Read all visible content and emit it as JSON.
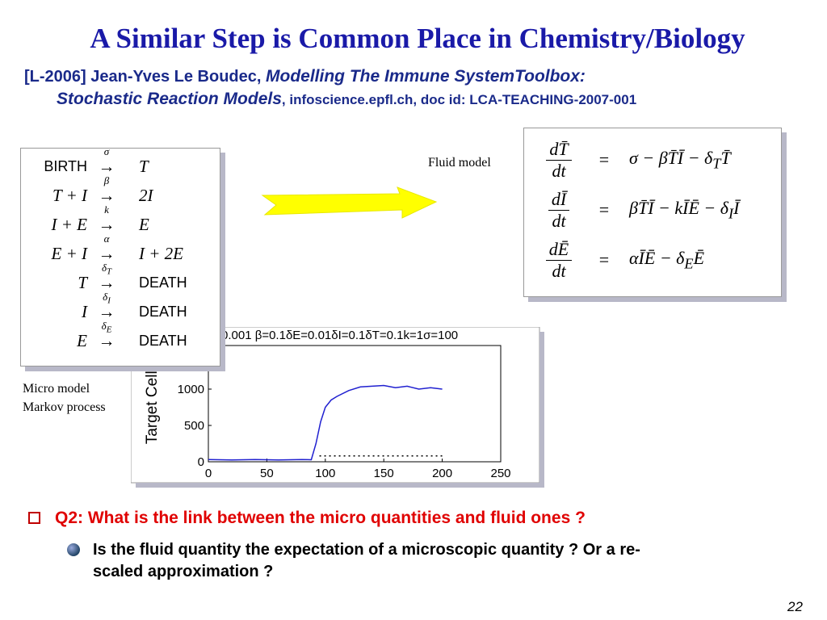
{
  "header": {
    "title": "A Similar Step is Common Place in Chemistry/Biology",
    "ref_lead": "[L-2006]  Jean-Yves Le Boudec, ",
    "ref_italic_1": "Modelling The Immune SystemToolbox:",
    "ref_italic_2": "Stochastic Reaction Models",
    "ref_tail": ", infoscience.epfl.ch, doc id: LCA-TEACHING-2007-001"
  },
  "reactions": [
    {
      "lhs": "BIRTH",
      "rate": [
        "σ"
      ],
      "rhs": "T"
    },
    {
      "lhs": "T + I",
      "rate": [
        "β"
      ],
      "rhs": "2I"
    },
    {
      "lhs": "I + E",
      "rate": [
        "k"
      ],
      "rhs": "E"
    },
    {
      "lhs": "E + I",
      "rate": [
        "α"
      ],
      "rhs": "I + 2E"
    },
    {
      "lhs": "T",
      "rate": [
        "δ",
        "T"
      ],
      "rhs": "DEATH"
    },
    {
      "lhs": "I",
      "rate": [
        "δ",
        "I"
      ],
      "rhs": "DEATH"
    },
    {
      "lhs": "E",
      "rate": [
        "δ",
        "E"
      ],
      "rhs": "DEATH"
    }
  ],
  "arrow_symbol": "→",
  "fluid_label": "Fluid model",
  "equations": [
    {
      "num": "dT̄",
      "den": "dt",
      "eq": "=",
      "rhs": [
        "σ − βT̄Ī − δ",
        "T",
        "T̄"
      ]
    },
    {
      "num": "dĪ",
      "den": "dt",
      "eq": "=",
      "rhs": [
        "βT̄Ī − kĪĒ − δ",
        "I",
        "Ī"
      ]
    },
    {
      "num": "dĒ",
      "den": "dt",
      "eq": "=",
      "rhs": [
        "αĪĒ − δ",
        "E",
        "Ē"
      ]
    }
  ],
  "micro_label": [
    "Micro model",
    "Markov process"
  ],
  "plot": {
    "title": "0.001 β=0.1δE=0.01δI=0.1δT=0.1k=1σ=100",
    "ylabel": "Target Cells",
    "xlim": [
      0,
      250
    ],
    "ylim": [
      0,
      1600
    ],
    "xticks": [
      0,
      50,
      100,
      150,
      200,
      250
    ],
    "yticks": [
      0,
      500,
      1000
    ],
    "series": [
      {
        "color": "#2020d0",
        "x": [
          0,
          20,
          40,
          60,
          80,
          88,
          92,
          96,
          100,
          105,
          110,
          120,
          130,
          140,
          150,
          160,
          170,
          180,
          190,
          200
        ],
        "values": [
          30,
          25,
          30,
          25,
          30,
          28,
          250,
          550,
          750,
          850,
          900,
          980,
          1030,
          1040,
          1050,
          1020,
          1040,
          1000,
          1020,
          1000
        ]
      },
      {
        "color": "#000000",
        "x": [
          95,
          200
        ],
        "values": [
          80,
          80
        ]
      }
    ]
  },
  "bullets": {
    "q2": "Q2: What is the link between the micro quantities and fluid ones ?",
    "sub": [
      "Is the fluid quantity the expectation of a microscopic quantity ? Or a re-",
      "scaled approximation ?"
    ]
  },
  "page_number": "22"
}
